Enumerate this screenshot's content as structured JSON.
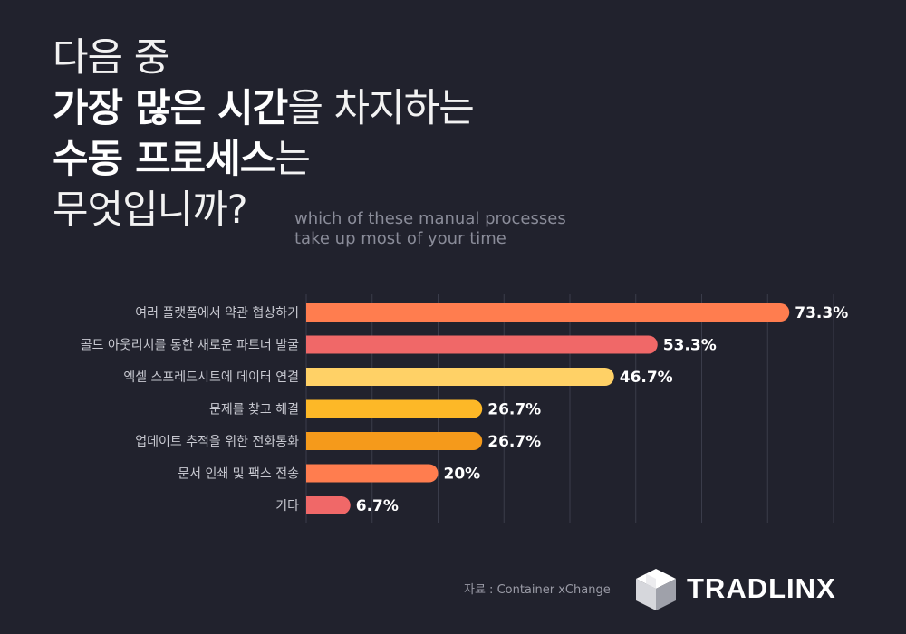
{
  "title": {
    "line1": "다음 중",
    "line2_bold": "가장 많은 시간",
    "line2_rest": "을 차지하는",
    "line3_bold": "수동 프로세스",
    "line3_rest": "는",
    "line4": "무엇입니까?"
  },
  "subtitle": {
    "line1": "which of these manual processes",
    "line2": "take up most of your time"
  },
  "source": "자료 : Container xChange",
  "logo": {
    "text": "TRADLINX",
    "icon": "cube-logo-icon"
  },
  "colors": {
    "background": "#21222d",
    "text": "#ffffff"
  },
  "chart_data": {
    "type": "bar",
    "orientation": "horizontal",
    "categories": [
      "여러 플랫폼에서 약관 협상하기",
      "콜드 아웃리치를 통한 새로운 파트너 발굴",
      "엑셀 스프레드시트에 데이터 연결",
      "문제를 찾고 해결",
      "업데이트 추적을 위한 전화통화",
      "문서 인쇄 및 팩스 전송",
      "기타"
    ],
    "values": [
      73.3,
      53.3,
      46.7,
      26.7,
      26.7,
      20,
      6.7
    ],
    "value_labels": [
      "73.3%",
      "53.3%",
      "46.7%",
      "26.7%",
      "26.7%",
      "20%",
      "6.7%"
    ],
    "colors": [
      "#ff7d4f",
      "#f06868",
      "#ffd166",
      "#fdb827",
      "#f59a1b",
      "#ff7d4f",
      "#f06868"
    ],
    "xlim": [
      0,
      80
    ],
    "grid": true
  }
}
